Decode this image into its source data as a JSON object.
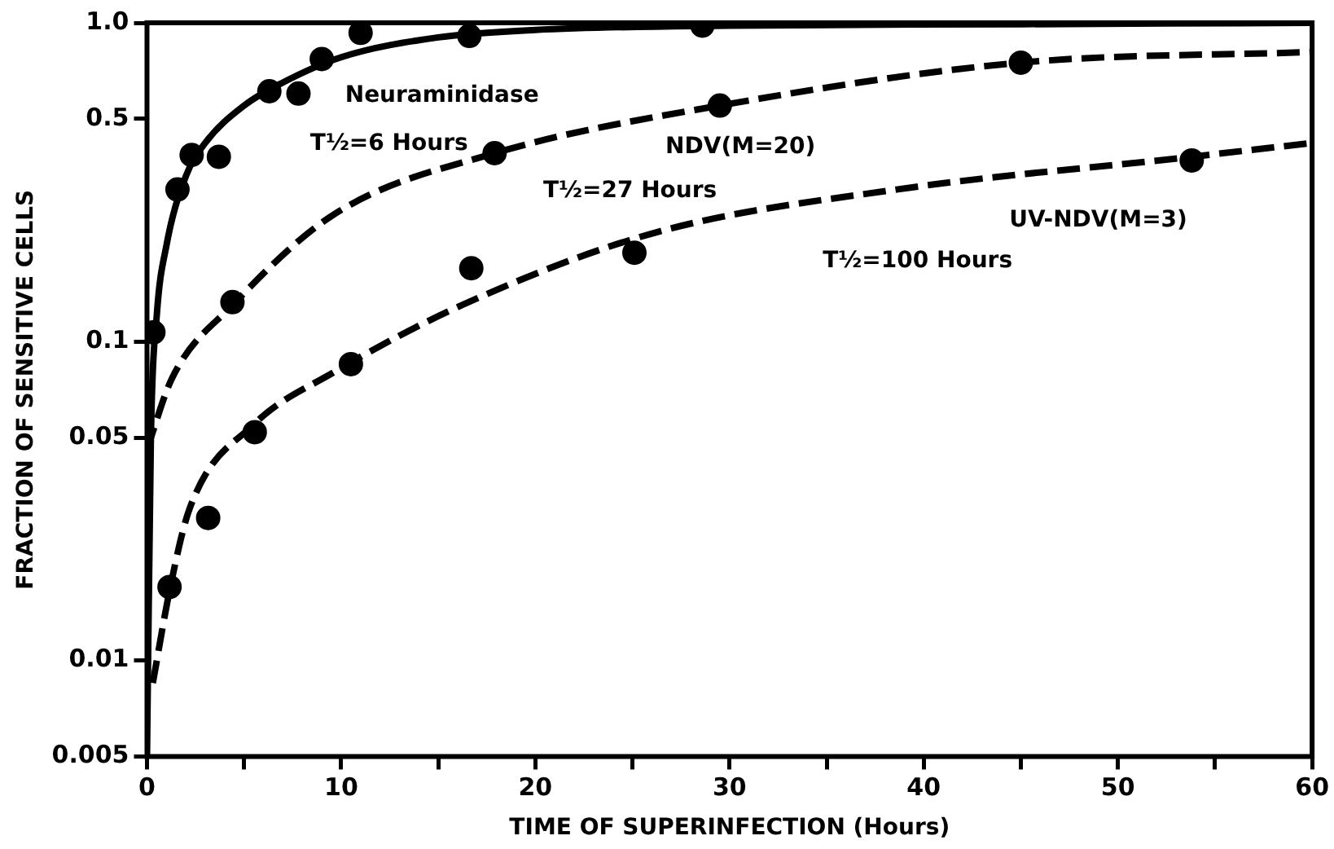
{
  "chart_data": {
    "type": "scatter",
    "xlabel": "TIME OF SUPERINFECTION (Hours)",
    "ylabel": "FRACTION OF SENSITIVE CELLS",
    "log": "y",
    "xlim": [
      0,
      60
    ],
    "ylim": [
      0.005,
      1
    ],
    "xticks": [
      0,
      {
        "value": 5,
        "label": null
      },
      10,
      {
        "value": 15,
        "label": null
      },
      20,
      {
        "value": 25,
        "label": null
      },
      30,
      {
        "value": 35,
        "label": null
      },
      40,
      {
        "value": 45,
        "label": null
      },
      50,
      {
        "value": 55,
        "label": null
      },
      60
    ],
    "yticks": [
      0.005,
      0.01,
      0.05,
      0.1,
      0.5,
      {
        "value": 1,
        "label": "1.0"
      }
    ],
    "series": [
      {
        "type": "scatter",
        "color": "#000000",
        "marker": "circle",
        "x": [
          0.33,
          1.57,
          2.3,
          3.7,
          6.3,
          7.8,
          9.0,
          11.0,
          16.6,
          28.6
        ],
        "values": [
          0.107,
          0.3,
          0.385,
          0.38,
          0.61,
          0.6,
          0.77,
          0.93,
          0.91,
          0.98
        ]
      },
      {
        "type": "scatter",
        "color": "#000000",
        "marker": "circle",
        "x": [
          4.4,
          17.9,
          29.5,
          45.0
        ],
        "values": [
          0.133,
          0.39,
          0.55,
          0.75
        ]
      },
      {
        "type": "scatter",
        "color": "#000000",
        "marker": "circle",
        "x": [
          1.16,
          3.15,
          5.55,
          10.5,
          16.7,
          25.1,
          53.8
        ],
        "values": [
          0.017,
          0.028,
          0.052,
          0.085,
          0.17,
          0.19,
          0.37
        ]
      },
      {
        "type": "line",
        "color": "#000000",
        "marker": "none",
        "line_style": "solid",
        "x": [
          0,
          0.2,
          0.5,
          1,
          2,
          3,
          5,
          7,
          10,
          15,
          20,
          30,
          45,
          60
        ],
        "values": [
          0.005,
          0.05,
          0.12,
          0.2,
          0.33,
          0.42,
          0.55,
          0.65,
          0.78,
          0.9,
          0.95,
          0.98,
          0.99,
          1.0
        ]
      },
      {
        "type": "line",
        "color": "#000000",
        "marker": "none",
        "line_style": "dashed",
        "x": [
          0,
          1.3,
          4.4,
          9.6,
          17.9,
          29.5,
          45,
          60
        ],
        "values": [
          0.046,
          0.077,
          0.13,
          0.25,
          0.39,
          0.55,
          0.75,
          0.81
        ]
      },
      {
        "type": "line",
        "color": "#000000",
        "marker": "none",
        "line_style": "dashed",
        "x": [
          0.3,
          1.2,
          2.2,
          5.5,
          9.6,
          16.2,
          26.2,
          38.6,
          53.8,
          60
        ],
        "values": [
          0.0085,
          0.017,
          0.03,
          0.055,
          0.08,
          0.13,
          0.22,
          0.3,
          0.38,
          0.42
        ]
      }
    ],
    "annotations": [
      "Neuraminidase",
      "T½=6 Hours",
      "NDV(M=20)",
      "T½=27 Hours",
      "UV-NDV(M=3)",
      "T½=100 Hours"
    ]
  }
}
